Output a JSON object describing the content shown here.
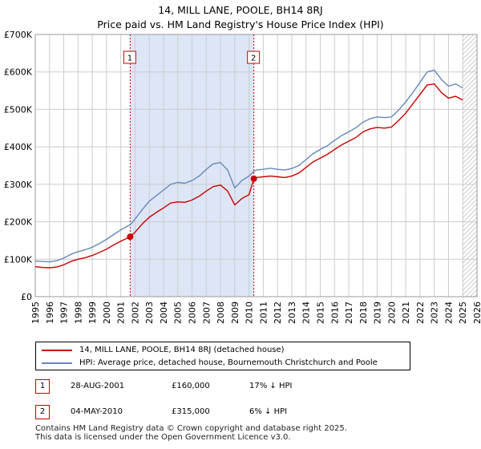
{
  "colors": {
    "price_line": "#cc0000",
    "hpi_line": "#6688bb",
    "shade": "#dde6f7",
    "grid": "#cccccc",
    "marker_dash": "#cc0000"
  },
  "title_line1": "14, MILL LANE, POOLE, BH14 8RJ",
  "title_line2": "Price paid vs. HM Land Registry's House Price Index (HPI)",
  "chart_data": {
    "type": "line",
    "title": "14, MILL LANE, POOLE, BH14 8RJ — Price paid vs. HM Land Registry's House Price Index (HPI)",
    "xlabel": "",
    "ylabel": "",
    "xlim": [
      1995,
      2026
    ],
    "ylim": [
      0,
      700000
    ],
    "y_ticks": [
      0,
      100000,
      200000,
      300000,
      400000,
      500000,
      600000,
      700000
    ],
    "y_tick_labels": [
      "£0",
      "£100K",
      "£200K",
      "£300K",
      "£400K",
      "£500K",
      "£600K",
      "£700K"
    ],
    "x_ticks": [
      1995,
      1996,
      1997,
      1998,
      1999,
      2000,
      2001,
      2002,
      2003,
      2004,
      2005,
      2006,
      2007,
      2008,
      2009,
      2010,
      2011,
      2012,
      2013,
      2014,
      2015,
      2016,
      2017,
      2018,
      2019,
      2020,
      2021,
      2022,
      2023,
      2024,
      2025,
      2026
    ],
    "x_tick_labels": [
      "1995",
      "1996",
      "1997",
      "1998",
      "1999",
      "2000",
      "2001",
      "2002",
      "2003",
      "2004",
      "2005",
      "2006",
      "2007",
      "2008",
      "2009",
      "2010",
      "2011",
      "2012",
      "2013",
      "2014",
      "2015",
      "2016",
      "2017",
      "2018",
      "2019",
      "2020",
      "2021",
      "2022",
      "2023",
      "2024",
      "2025",
      "2026"
    ],
    "grid": true,
    "shaded_range": [
      2001.66,
      2010.34
    ],
    "future_hatch_from": 2025.0,
    "series": [
      {
        "name": "14, MILL LANE, POOLE, BH14 8RJ (detached house)",
        "color": "#cc0000",
        "points": [
          [
            1995,
            80000
          ],
          [
            1995.5,
            78000
          ],
          [
            1996,
            77000
          ],
          [
            1996.5,
            79000
          ],
          [
            1997,
            85000
          ],
          [
            1997.5,
            94000
          ],
          [
            1998,
            100000
          ],
          [
            1998.5,
            104000
          ],
          [
            1999,
            110000
          ],
          [
            1999.5,
            118000
          ],
          [
            2000,
            127000
          ],
          [
            2000.5,
            138000
          ],
          [
            2001,
            148000
          ],
          [
            2001.66,
            160000
          ],
          [
            2002,
            172000
          ],
          [
            2002.5,
            194000
          ],
          [
            2003,
            212000
          ],
          [
            2003.5,
            225000
          ],
          [
            2004,
            237000
          ],
          [
            2004.5,
            250000
          ],
          [
            2005,
            253000
          ],
          [
            2005.5,
            252000
          ],
          [
            2006,
            258000
          ],
          [
            2006.5,
            268000
          ],
          [
            2007,
            282000
          ],
          [
            2007.5,
            294000
          ],
          [
            2008,
            298000
          ],
          [
            2008.5,
            282000
          ],
          [
            2009,
            245000
          ],
          [
            2009.5,
            262000
          ],
          [
            2010,
            272000
          ],
          [
            2010.34,
            315000
          ],
          [
            2010.5,
            318000
          ],
          [
            2011,
            320000
          ],
          [
            2011.5,
            322000
          ],
          [
            2012,
            320000
          ],
          [
            2012.5,
            318000
          ],
          [
            2013,
            322000
          ],
          [
            2013.5,
            330000
          ],
          [
            2014,
            345000
          ],
          [
            2014.5,
            360000
          ],
          [
            2015,
            370000
          ],
          [
            2015.5,
            380000
          ],
          [
            2016,
            393000
          ],
          [
            2016.5,
            405000
          ],
          [
            2017,
            415000
          ],
          [
            2017.5,
            425000
          ],
          [
            2018,
            440000
          ],
          [
            2018.5,
            448000
          ],
          [
            2019,
            452000
          ],
          [
            2019.5,
            450000
          ],
          [
            2020,
            453000
          ],
          [
            2020.5,
            470000
          ],
          [
            2021,
            490000
          ],
          [
            2021.5,
            515000
          ],
          [
            2022,
            540000
          ],
          [
            2022.5,
            565000
          ],
          [
            2023,
            568000
          ],
          [
            2023.5,
            545000
          ],
          [
            2024,
            530000
          ],
          [
            2024.5,
            535000
          ],
          [
            2025,
            525000
          ]
        ]
      },
      {
        "name": "HPI: Average price, detached house, Bournemouth Christchurch and Poole",
        "color": "#6688bb",
        "points": [
          [
            1995,
            95000
          ],
          [
            1995.5,
            94000
          ],
          [
            1996,
            93000
          ],
          [
            1996.5,
            96000
          ],
          [
            1997,
            103000
          ],
          [
            1997.5,
            113000
          ],
          [
            1998,
            120000
          ],
          [
            1998.5,
            125000
          ],
          [
            1999,
            132000
          ],
          [
            1999.5,
            142000
          ],
          [
            2000,
            153000
          ],
          [
            2000.5,
            166000
          ],
          [
            2001,
            178000
          ],
          [
            2001.66,
            192000
          ],
          [
            2002,
            207000
          ],
          [
            2002.5,
            232000
          ],
          [
            2003,
            255000
          ],
          [
            2003.5,
            270000
          ],
          [
            2004,
            285000
          ],
          [
            2004.5,
            300000
          ],
          [
            2005,
            305000
          ],
          [
            2005.5,
            303000
          ],
          [
            2006,
            310000
          ],
          [
            2006.5,
            322000
          ],
          [
            2007,
            340000
          ],
          [
            2007.5,
            355000
          ],
          [
            2008,
            358000
          ],
          [
            2008.5,
            338000
          ],
          [
            2009,
            290000
          ],
          [
            2009.5,
            310000
          ],
          [
            2010,
            322000
          ],
          [
            2010.34,
            335000
          ],
          [
            2010.5,
            338000
          ],
          [
            2011,
            340000
          ],
          [
            2011.5,
            343000
          ],
          [
            2012,
            340000
          ],
          [
            2012.5,
            338000
          ],
          [
            2013,
            342000
          ],
          [
            2013.5,
            350000
          ],
          [
            2014,
            366000
          ],
          [
            2014.5,
            382000
          ],
          [
            2015,
            393000
          ],
          [
            2015.5,
            403000
          ],
          [
            2016,
            417000
          ],
          [
            2016.5,
            430000
          ],
          [
            2017,
            440000
          ],
          [
            2017.5,
            451000
          ],
          [
            2018,
            466000
          ],
          [
            2018.5,
            475000
          ],
          [
            2019,
            480000
          ],
          [
            2019.5,
            478000
          ],
          [
            2020,
            480000
          ],
          [
            2020.5,
            498000
          ],
          [
            2021,
            520000
          ],
          [
            2021.5,
            545000
          ],
          [
            2022,
            572000
          ],
          [
            2022.5,
            600000
          ],
          [
            2023,
            605000
          ],
          [
            2023.5,
            580000
          ],
          [
            2024,
            562000
          ],
          [
            2024.5,
            568000
          ],
          [
            2025,
            557000
          ]
        ]
      }
    ],
    "sales": [
      {
        "label": "1",
        "x": 2001.66,
        "y": 160000
      },
      {
        "label": "2",
        "x": 2010.34,
        "y": 315000
      }
    ]
  },
  "legend": {
    "items": [
      {
        "label": "14, MILL LANE, POOLE, BH14 8RJ (detached house)"
      },
      {
        "label": "HPI: Average price, detached house, Bournemouth Christchurch and Poole"
      }
    ]
  },
  "sales_table": [
    {
      "badge": "1",
      "date": "28-AUG-2001",
      "price": "£160,000",
      "hpi": "17% ↓ HPI"
    },
    {
      "badge": "2",
      "date": "04-MAY-2010",
      "price": "£315,000",
      "hpi": "6% ↓ HPI"
    }
  ],
  "footer": {
    "line1": "Contains HM Land Registry data © Crown copyright and database right 2025.",
    "line2": "This data is licensed under the Open Government Licence v3.0."
  }
}
